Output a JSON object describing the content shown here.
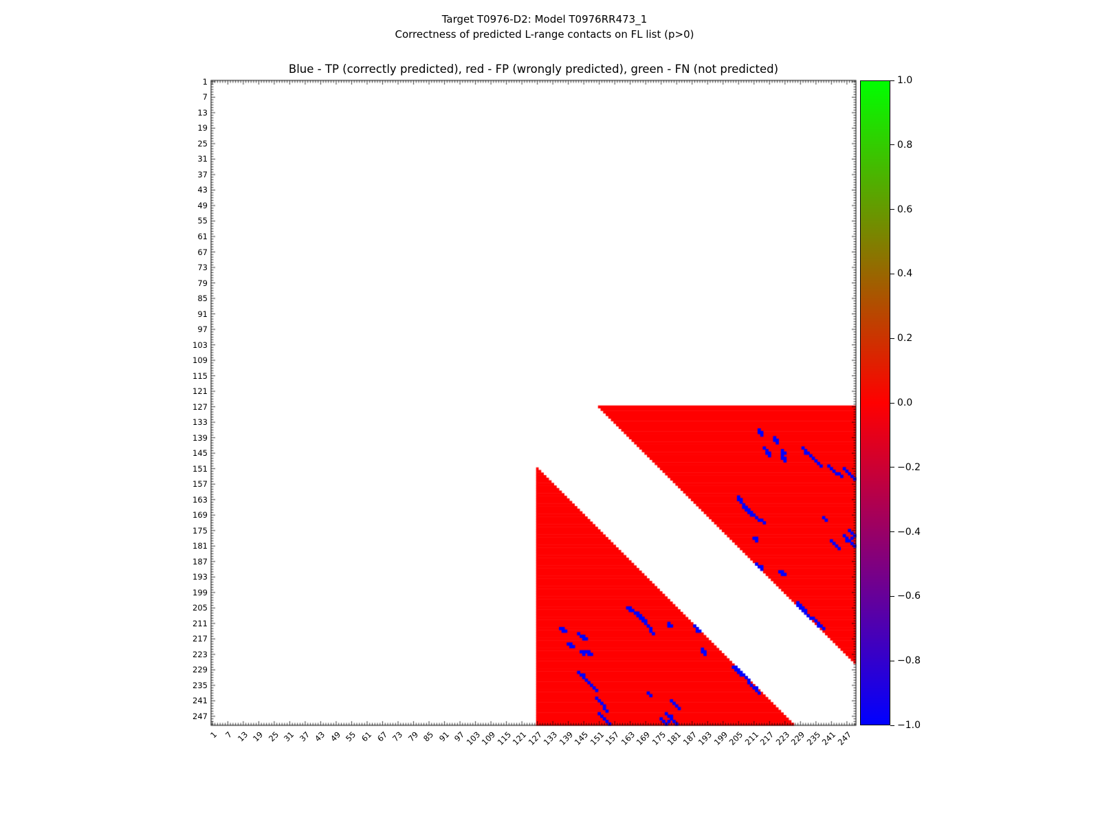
{
  "chart_data": {
    "type": "heatmap",
    "suptitle_lines": [
      "Target T0976-D2: Model T0976RR473_1",
      "Correctness of predicted L-range contacts on FL list (p>0)"
    ],
    "title": "Blue - TP (correctly predicted), red - FP (wrongly predicted), green - FN (not predicted)",
    "xlabel": "",
    "ylabel": "",
    "x_range": [
      1,
      250
    ],
    "y_range": [
      1,
      250
    ],
    "y_inverted": true,
    "grid": false,
    "x_ticks": [
      1,
      7,
      13,
      19,
      25,
      31,
      37,
      43,
      49,
      55,
      61,
      67,
      73,
      79,
      85,
      91,
      97,
      103,
      109,
      115,
      121,
      127,
      133,
      139,
      145,
      151,
      157,
      163,
      169,
      175,
      181,
      187,
      193,
      199,
      205,
      211,
      217,
      223,
      229,
      235,
      241,
      247
    ],
    "y_ticks": [
      1,
      7,
      13,
      19,
      25,
      31,
      37,
      43,
      49,
      55,
      61,
      67,
      73,
      79,
      85,
      91,
      97,
      103,
      109,
      115,
      121,
      127,
      133,
      139,
      145,
      151,
      157,
      163,
      169,
      175,
      181,
      187,
      193,
      199,
      205,
      211,
      217,
      223,
      229,
      235,
      241,
      247
    ],
    "legend": {
      "blue": "TP (correctly predicted)",
      "red": "FP (wrongly predicted)",
      "green": "FN (not predicted)"
    },
    "colors": {
      "tp": "#0000ff",
      "fp": "#ff0000",
      "fn": "#00cc00",
      "background": "#ffffff"
    },
    "fp_region": {
      "residue_start": 127,
      "residue_end": 250,
      "min_separation": 24
    },
    "tp_contacts": [
      [
        136,
        213
      ],
      [
        137,
        213
      ],
      [
        137,
        214
      ],
      [
        138,
        214
      ],
      [
        139,
        219
      ],
      [
        140,
        219
      ],
      [
        140,
        220
      ],
      [
        141,
        220
      ],
      [
        143,
        215
      ],
      [
        144,
        216
      ],
      [
        145,
        216
      ],
      [
        145,
        217
      ],
      [
        146,
        217
      ],
      [
        144,
        222
      ],
      [
        145,
        222
      ],
      [
        145,
        223
      ],
      [
        146,
        222
      ],
      [
        147,
        222
      ],
      [
        147,
        223
      ],
      [
        148,
        223
      ],
      [
        143,
        230
      ],
      [
        144,
        231
      ],
      [
        145,
        231
      ],
      [
        145,
        232
      ],
      [
        146,
        233
      ],
      [
        147,
        234
      ],
      [
        148,
        235
      ],
      [
        149,
        236
      ],
      [
        150,
        237
      ],
      [
        150,
        240
      ],
      [
        151,
        241
      ],
      [
        152,
        242
      ],
      [
        153,
        243
      ],
      [
        153,
        244
      ],
      [
        154,
        245
      ],
      [
        151,
        246
      ],
      [
        152,
        247
      ],
      [
        153,
        248
      ],
      [
        154,
        249
      ],
      [
        155,
        250
      ],
      [
        162,
        205
      ],
      [
        163,
        205
      ],
      [
        163,
        206
      ],
      [
        164,
        206
      ],
      [
        165,
        207
      ],
      [
        166,
        207
      ],
      [
        166,
        208
      ],
      [
        167,
        208
      ],
      [
        167,
        209
      ],
      [
        168,
        209
      ],
      [
        168,
        210
      ],
      [
        169,
        210
      ],
      [
        169,
        211
      ],
      [
        170,
        212
      ],
      [
        171,
        213
      ],
      [
        171,
        214
      ],
      [
        172,
        215
      ],
      [
        170,
        238
      ],
      [
        171,
        239
      ],
      [
        178,
        211
      ],
      [
        178,
        212
      ],
      [
        179,
        212
      ],
      [
        175,
        248
      ],
      [
        176,
        249
      ],
      [
        177,
        250
      ],
      [
        178,
        249
      ],
      [
        177,
        246
      ],
      [
        178,
        247
      ],
      [
        179,
        247
      ],
      [
        179,
        248
      ],
      [
        180,
        249
      ],
      [
        181,
        250
      ],
      [
        179,
        241
      ],
      [
        180,
        242
      ],
      [
        181,
        243
      ],
      [
        182,
        244
      ],
      [
        188,
        212
      ],
      [
        189,
        213
      ],
      [
        189,
        214
      ],
      [
        190,
        214
      ],
      [
        191,
        221
      ],
      [
        191,
        222
      ],
      [
        192,
        222
      ],
      [
        192,
        223
      ],
      [
        203,
        228
      ],
      [
        204,
        228
      ],
      [
        204,
        229
      ],
      [
        205,
        229
      ],
      [
        205,
        230
      ],
      [
        206,
        230
      ],
      [
        206,
        231
      ],
      [
        207,
        231
      ],
      [
        208,
        232
      ],
      [
        209,
        233
      ],
      [
        209,
        234
      ],
      [
        210,
        235
      ],
      [
        211,
        236
      ],
      [
        212,
        236
      ],
      [
        212,
        237
      ],
      [
        213,
        238
      ]
    ],
    "colorbar": {
      "min": -1.0,
      "max": 1.0,
      "ticks": [
        "1.0",
        "0.8",
        "0.6",
        "0.4",
        "0.2",
        "0.0",
        "−0.2",
        "−0.4",
        "−0.6",
        "−0.8",
        "−1.0"
      ],
      "top_color": "#00ff00",
      "mid_color": "#ff0000",
      "bottom_color": "#0000ff",
      "position": "right"
    }
  }
}
